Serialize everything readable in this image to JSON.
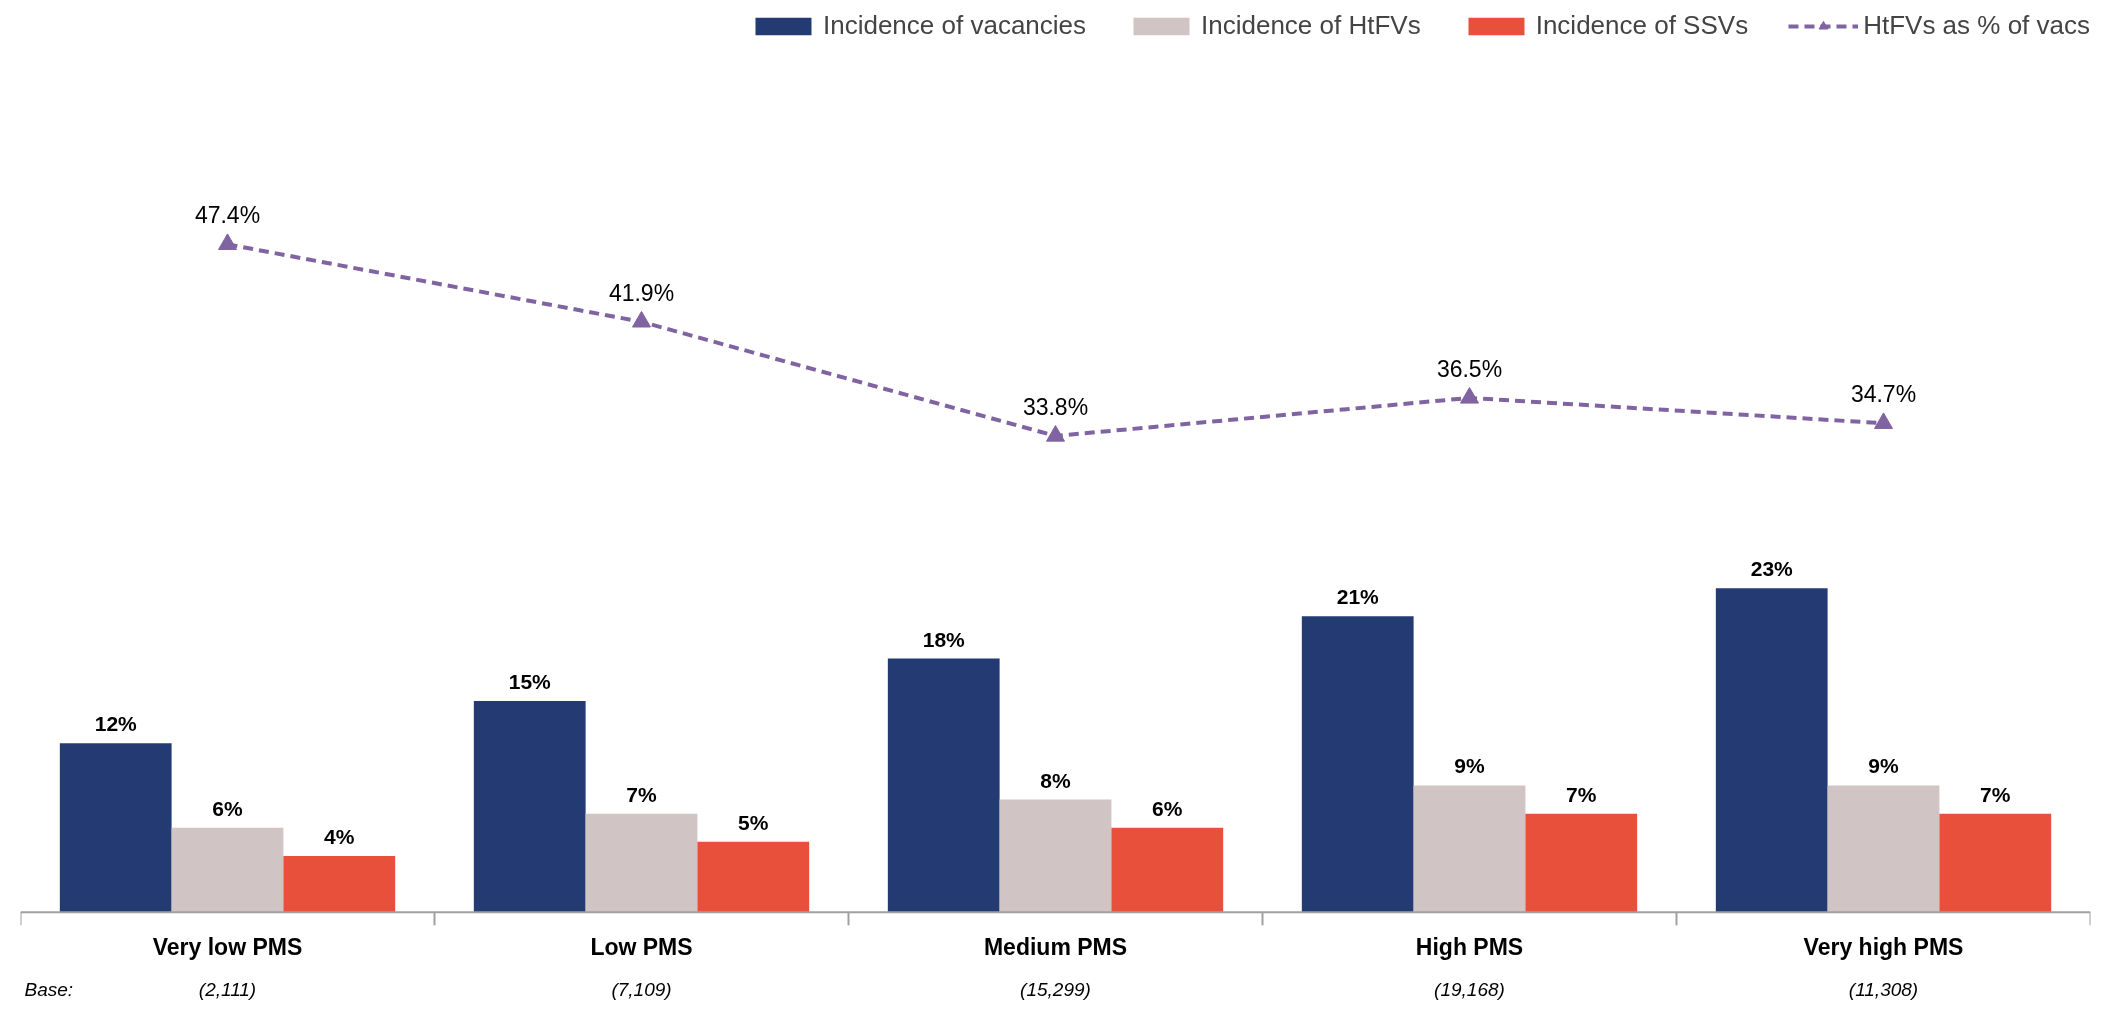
{
  "chart_data": {
    "type": "bar",
    "categories": [
      "Very low PMS",
      "Low PMS",
      "Medium PMS",
      "High PMS",
      "Very high PMS"
    ],
    "series": [
      {
        "name": "Incidence of vacancies",
        "color": "#243a73",
        "values": [
          12,
          15,
          18,
          21,
          23
        ],
        "value_labels": [
          "12%",
          "15%",
          "18%",
          "21%",
          "23%"
        ]
      },
      {
        "name": "Incidence of HtFVs",
        "color": "#d0c4c4",
        "values": [
          6,
          7,
          8,
          9,
          9
        ],
        "value_labels": [
          "6%",
          "7%",
          "8%",
          "9%",
          "9%"
        ]
      },
      {
        "name": "Incidence of SSVs",
        "color": "#e8503c",
        "values": [
          4,
          5,
          6,
          7,
          7
        ],
        "value_labels": [
          "4%",
          "5%",
          "6%",
          "7%",
          "7%"
        ]
      },
      {
        "name": "HtFVs as % of vacs",
        "type": "line",
        "color": "#8064a2",
        "marker": "triangle",
        "line_style": "dashed",
        "values": [
          47.4,
          41.9,
          33.8,
          36.5,
          34.7
        ],
        "value_labels": [
          "47.4%",
          "41.9%",
          "33.8%",
          "36.5%",
          "34.7%"
        ]
      }
    ],
    "legend": "top right",
    "grid": false,
    "annotations": [
      "Base:",
      "(2,111)",
      "(7,109)",
      "(15,299)",
      "(19,168)",
      "(11,308)"
    ]
  }
}
